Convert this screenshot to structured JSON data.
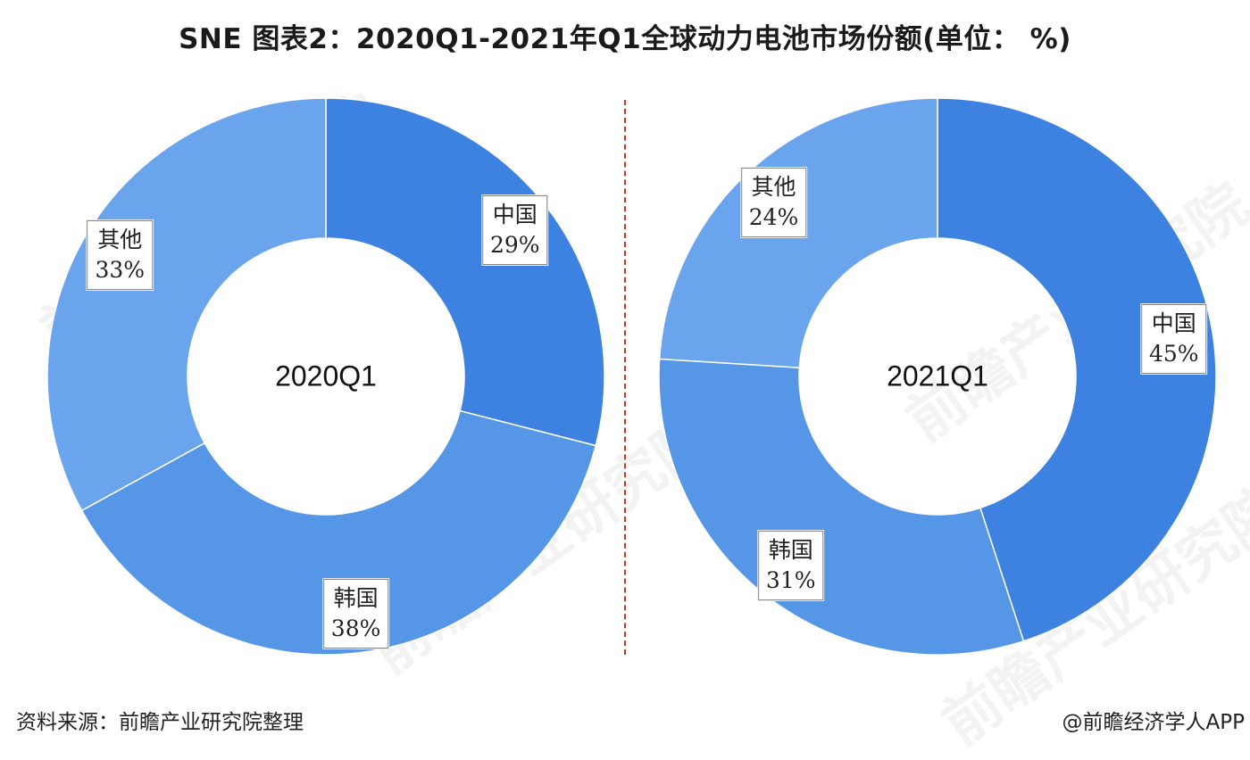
{
  "title": "SNE 图表2：2020Q1-2021年Q1全球动力电池市场份额(单位： %)",
  "source": "资料来源：前瞻产业研究院整理",
  "credit": "@前瞻经济学人APP",
  "watermark": "前瞻产业研究院",
  "colors": {
    "中国": "#3d82e0",
    "韩国": "#5696e6",
    "其他": "#6aa4ec",
    "divider": "#c0392b"
  },
  "chart_data": [
    {
      "type": "pie",
      "title": "2020Q1",
      "slices": [
        {
          "name": "中国",
          "value": 29,
          "label": "29%"
        },
        {
          "name": "韩国",
          "value": 38,
          "label": "38%"
        },
        {
          "name": "其他",
          "value": 33,
          "label": "33%"
        }
      ]
    },
    {
      "type": "pie",
      "title": "2021Q1",
      "slices": [
        {
          "name": "中国",
          "value": 45,
          "label": "45%"
        },
        {
          "name": "韩国",
          "value": 31,
          "label": "31%"
        },
        {
          "name": "其他",
          "value": 24,
          "label": "24%"
        }
      ]
    }
  ]
}
